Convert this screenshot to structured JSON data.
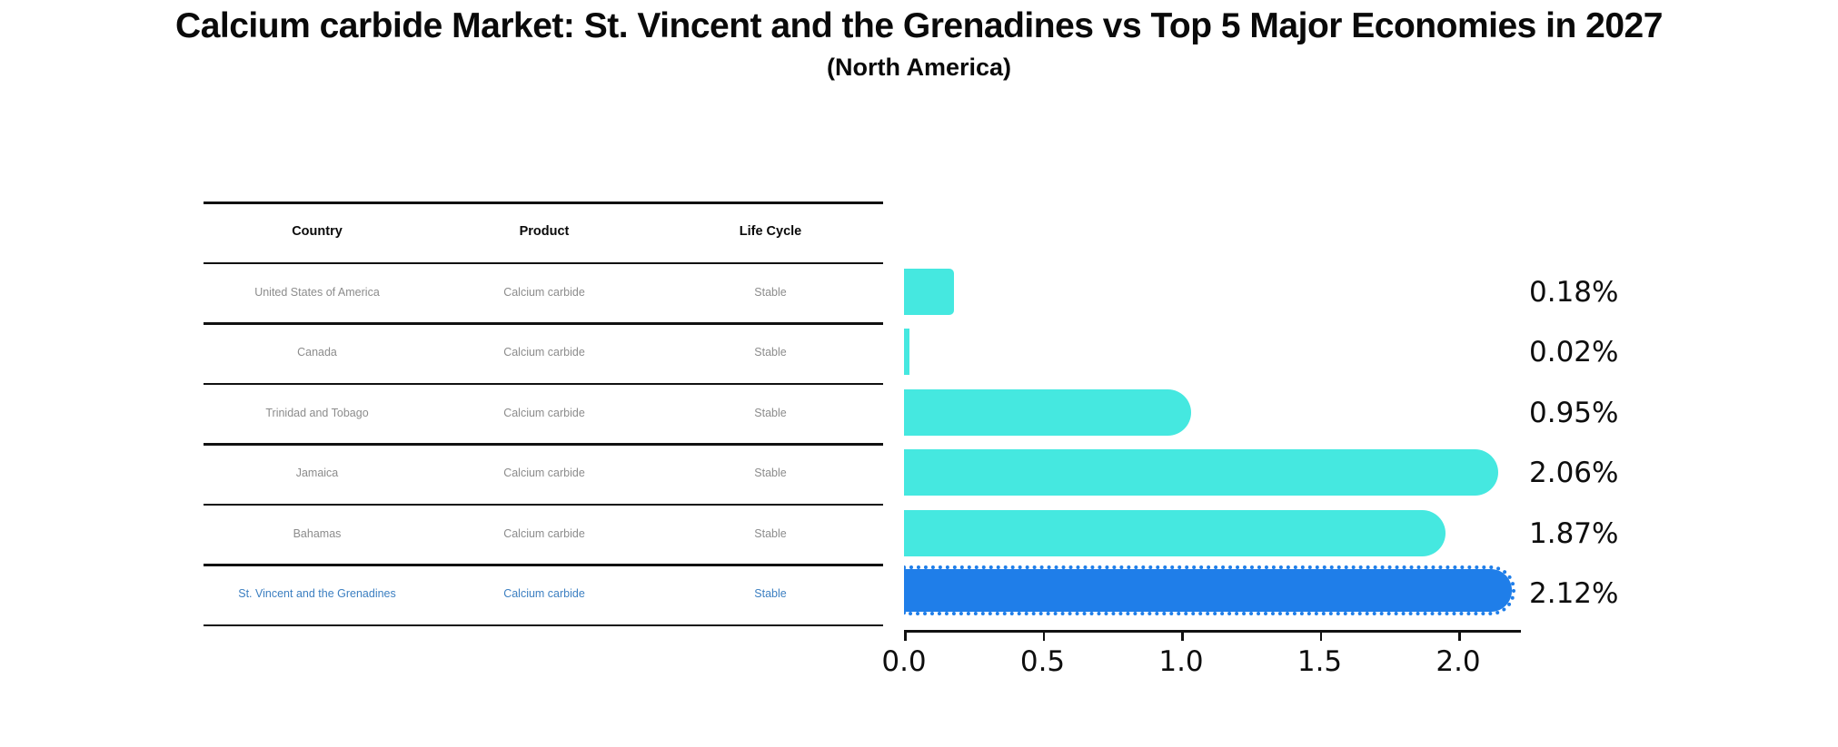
{
  "title": "Calcium carbide Market: St. Vincent and the Grenadines vs Top 5 Major Economies in 2027",
  "subtitle": "(North America)",
  "table": {
    "headers": [
      "Country",
      "Product",
      "Life Cycle"
    ],
    "rows": [
      {
        "country": "United States of America",
        "product": "Calcium carbide",
        "life_cycle": "Stable",
        "highlight": false
      },
      {
        "country": "Canada",
        "product": "Calcium carbide",
        "life_cycle": "Stable",
        "highlight": false
      },
      {
        "country": "Trinidad and Tobago",
        "product": "Calcium carbide",
        "life_cycle": "Stable",
        "highlight": false
      },
      {
        "country": "Jamaica",
        "product": "Calcium carbide",
        "life_cycle": "Stable",
        "highlight": false
      },
      {
        "country": "Bahamas",
        "product": "Calcium carbide",
        "life_cycle": "Stable",
        "highlight": false
      },
      {
        "country": "St. Vincent and the Grenadines",
        "product": "Calcium carbide",
        "life_cycle": "Stable",
        "highlight": true
      }
    ]
  },
  "chart_data": {
    "type": "bar",
    "orientation": "horizontal",
    "title": "Calcium carbide Market: St. Vincent and the Grenadines vs Top 5 Major Economies in 2027",
    "subtitle": "(North America)",
    "categories": [
      "United States of America",
      "Canada",
      "Trinidad and Tobago",
      "Jamaica",
      "Bahamas",
      "St. Vincent and the Grenadines"
    ],
    "values": [
      0.18,
      0.02,
      0.95,
      2.06,
      1.87,
      2.12
    ],
    "value_labels": [
      "0.18%",
      "0.02%",
      "0.95%",
      "2.06%",
      "1.87%",
      "2.12%"
    ],
    "x_ticks": [
      0.0,
      0.5,
      1.0,
      1.5,
      2.0
    ],
    "x_tick_labels": [
      "0.0",
      "0.5",
      "1.0",
      "1.5",
      "2.0"
    ],
    "xlim": [
      0,
      2.22
    ],
    "grid": false,
    "legend": false,
    "highlight_index": 5,
    "colors": {
      "bar": "#45e8e0",
      "highlight_bar": "#1f7ee9",
      "highlight_text": "#3c7fc1",
      "row_text": "#8c8c8c",
      "axis": "#111111"
    }
  }
}
